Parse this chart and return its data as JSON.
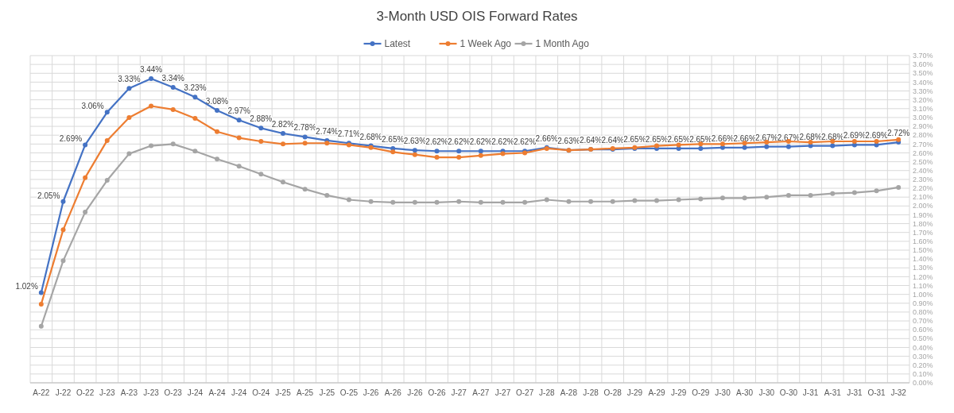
{
  "chart_data": {
    "type": "line",
    "title": "3-Month USD OIS Forward Rates",
    "categories": [
      "A-22",
      "J-22",
      "O-22",
      "J-23",
      "A-23",
      "J-23",
      "O-23",
      "J-24",
      "A-24",
      "J-24",
      "O-24",
      "J-25",
      "A-25",
      "J-25",
      "O-25",
      "J-26",
      "A-26",
      "J-26",
      "O-26",
      "J-27",
      "A-27",
      "J-27",
      "O-27",
      "J-28",
      "A-28",
      "J-28",
      "O-28",
      "J-29",
      "A-29",
      "J-29",
      "O-29",
      "J-30",
      "A-30",
      "J-30",
      "O-30",
      "J-31",
      "A-31",
      "J-31",
      "O-31",
      "J-32"
    ],
    "series": [
      {
        "name": "Latest",
        "color": "#4472c4",
        "values": [
          1.02,
          2.05,
          2.69,
          3.06,
          3.33,
          3.44,
          3.34,
          3.23,
          3.08,
          2.97,
          2.88,
          2.82,
          2.78,
          2.74,
          2.71,
          2.68,
          2.65,
          2.63,
          2.62,
          2.62,
          2.62,
          2.62,
          2.62,
          2.66,
          2.63,
          2.64,
          2.64,
          2.65,
          2.65,
          2.65,
          2.65,
          2.66,
          2.66,
          2.67,
          2.67,
          2.68,
          2.68,
          2.69,
          2.69,
          2.72
        ],
        "value_labels": [
          "1.02%",
          "2.05%",
          "2.69%",
          "3.06%",
          "3.33%",
          "3.44%",
          "3.34%",
          "3.23%",
          "3.08%",
          "2.97%",
          "2.88%",
          "2.82%",
          "2.78%",
          "2.74%",
          "2.71%",
          "2.68%",
          "2.65%",
          "2.63%",
          "2.62%",
          "2.62%",
          "2.62%",
          "2.62%",
          "2.62%",
          "2.66%",
          "2.63%",
          "2.64%",
          "2.64%",
          "2.65%",
          "2.65%",
          "2.65%",
          "2.65%",
          "2.66%",
          "2.66%",
          "2.67%",
          "2.67%",
          "2.68%",
          "2.68%",
          "2.69%",
          "2.69%",
          "2.72%"
        ]
      },
      {
        "name": "1 Week Ago",
        "color": "#ed7d31",
        "values": [
          0.89,
          1.73,
          2.32,
          2.74,
          3.0,
          3.13,
          3.09,
          2.99,
          2.84,
          2.77,
          2.73,
          2.7,
          2.71,
          2.71,
          2.69,
          2.66,
          2.61,
          2.58,
          2.55,
          2.55,
          2.57,
          2.59,
          2.6,
          2.65,
          2.63,
          2.64,
          2.65,
          2.66,
          2.68,
          2.69,
          2.7,
          2.7,
          2.71,
          2.72,
          2.73,
          2.72,
          2.73,
          2.73,
          2.73,
          2.75
        ]
      },
      {
        "name": "1 Month Ago",
        "color": "#a5a5a5",
        "values": [
          0.64,
          1.38,
          1.93,
          2.29,
          2.59,
          2.68,
          2.7,
          2.62,
          2.53,
          2.45,
          2.36,
          2.27,
          2.19,
          2.12,
          2.07,
          2.05,
          2.04,
          2.04,
          2.04,
          2.05,
          2.04,
          2.04,
          2.04,
          2.07,
          2.05,
          2.05,
          2.05,
          2.06,
          2.06,
          2.07,
          2.08,
          2.09,
          2.09,
          2.1,
          2.12,
          2.12,
          2.14,
          2.15,
          2.17,
          2.21
        ]
      }
    ],
    "ylim": [
      0,
      3.7
    ],
    "yticks": [
      {
        "value": 0,
        "label": "0.00%"
      },
      {
        "value": 0.1,
        "label": "0.10%"
      },
      {
        "value": 0.2,
        "label": "0.20%"
      },
      {
        "value": 0.3,
        "label": "0.30%"
      },
      {
        "value": 0.4,
        "label": "0.40%"
      },
      {
        "value": 0.5,
        "label": "0.50%"
      },
      {
        "value": 0.6,
        "label": "0.60%"
      },
      {
        "value": 0.7,
        "label": "0.70%"
      },
      {
        "value": 0.8,
        "label": "0.80%"
      },
      {
        "value": 0.9,
        "label": "0.90%"
      },
      {
        "value": 1.0,
        "label": "1.00%"
      },
      {
        "value": 1.1,
        "label": "1.10%"
      },
      {
        "value": 1.2,
        "label": "1.20%"
      },
      {
        "value": 1.3,
        "label": "1.30%"
      },
      {
        "value": 1.4,
        "label": "1.40%"
      },
      {
        "value": 1.5,
        "label": "1.50%"
      },
      {
        "value": 1.6,
        "label": "1.60%"
      },
      {
        "value": 1.7,
        "label": "1.70%"
      },
      {
        "value": 1.8,
        "label": "1.80%"
      },
      {
        "value": 1.9,
        "label": "1.90%"
      },
      {
        "value": 2.0,
        "label": "2.00%"
      },
      {
        "value": 2.1,
        "label": "2.10%"
      },
      {
        "value": 2.2,
        "label": "2.20%"
      },
      {
        "value": 2.3,
        "label": "2.30%"
      },
      {
        "value": 2.4,
        "label": "2.40%"
      },
      {
        "value": 2.5,
        "label": "2.50%"
      },
      {
        "value": 2.6,
        "label": "2.60%"
      },
      {
        "value": 2.7,
        "label": "2.70%"
      },
      {
        "value": 2.8,
        "label": "2.80%"
      },
      {
        "value": 2.9,
        "label": "2.90%"
      },
      {
        "value": 3.0,
        "label": "3.00%"
      },
      {
        "value": 3.1,
        "label": "3.10%"
      },
      {
        "value": 3.2,
        "label": "3.20%"
      },
      {
        "value": 3.3,
        "label": "3.30%"
      },
      {
        "value": 3.4,
        "label": "3.40%"
      },
      {
        "value": 3.5,
        "label": "3.50%"
      },
      {
        "value": 3.6,
        "label": "3.60%"
      },
      {
        "value": 3.7,
        "label": "3.70%"
      }
    ],
    "grid": true,
    "legend": "top",
    "marker": "circle",
    "line_style": "solid"
  }
}
